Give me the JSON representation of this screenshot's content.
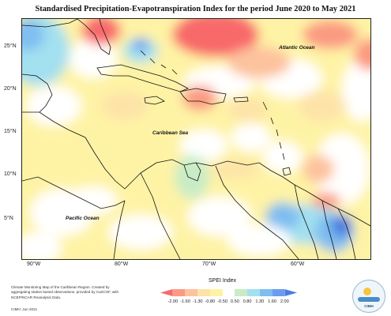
{
  "title": "Standardised Precipitation-Evapotranspiration Index for the period June 2020 to May 2021",
  "map": {
    "latitude_labels": [
      "25°N",
      "20°N",
      "15°N",
      "10°N",
      "5°N"
    ],
    "longitude_labels": [
      "90°W",
      "80°W",
      "70°W",
      "60°W"
    ],
    "ocean_labels": {
      "atlantic": "Atlantic Ocean",
      "caribbean": "Caribbean Sea",
      "pacific": "Pacific Ocean"
    },
    "land_outline_color": "#111111"
  },
  "legend": {
    "title": "SPEI Index",
    "tick_labels": [
      "-2.00",
      "-1.60",
      "-1.30",
      "-0.80",
      "-0.50",
      "0.50",
      "0.80",
      "1.30",
      "1.60",
      "2.00"
    ],
    "colors": [
      "#f8696b",
      "#fb9a82",
      "#fdc29e",
      "#fde3a7",
      "#fef3a5",
      "#ffffff",
      "#c8ecc6",
      "#a3e0f0",
      "#7fbef0",
      "#6a9cf0",
      "#4a7de0"
    ]
  },
  "credit": {
    "text": "Climate Monitoring Map of the Caribbean Region. Created by aggregating station based observations, provided by CariCOF, with NCEP/NCAR Reanalysis Data.",
    "date": "CIMH: Jun 2021"
  },
  "logo": {
    "text": "CIMH"
  }
}
